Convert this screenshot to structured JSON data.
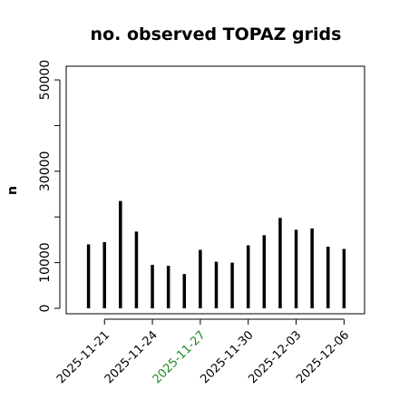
{
  "chart_data": {
    "type": "bar",
    "title": "no. observed TOPAZ grids",
    "xlabel": "",
    "ylabel": "n",
    "ylim": [
      0,
      52000
    ],
    "xlim": [
      "2025-11-19",
      "2025-12-07"
    ],
    "yticks": [
      0,
      10000,
      20000,
      30000,
      40000,
      50000
    ],
    "ytick_labels": [
      "0",
      "10000",
      "",
      "30000",
      "",
      "50000"
    ],
    "xticks": [
      "2025-11-21",
      "2025-11-24",
      "2025-11-27",
      "2025-11-30",
      "2025-12-03",
      "2025-12-06"
    ],
    "xtick_labels": [
      "2025-11-21",
      "2025-11-24",
      "2025-11-27",
      "2025-11-30",
      "2025-12-03",
      "2025-12-06"
    ],
    "xtick_label_colors": [
      "#000000",
      "#000000",
      "#228B22",
      "#000000",
      "#000000",
      "#000000"
    ],
    "x": [
      "2025-11-20",
      "2025-11-21",
      "2025-11-22",
      "2025-11-23",
      "2025-11-24",
      "2025-11-25",
      "2025-11-26",
      "2025-11-27",
      "2025-11-28",
      "2025-11-29",
      "2025-11-30",
      "2025-12-01",
      "2025-12-02",
      "2025-12-03",
      "2025-12-04",
      "2025-12-05",
      "2025-12-06"
    ],
    "values": [
      14000,
      14500,
      23500,
      16800,
      9500,
      9300,
      7500,
      12800,
      10200,
      10000,
      13800,
      16000,
      19800,
      17200,
      17500,
      13500,
      13000
    ],
    "bar_color": "#000000",
    "grid": false,
    "legend": "none"
  }
}
